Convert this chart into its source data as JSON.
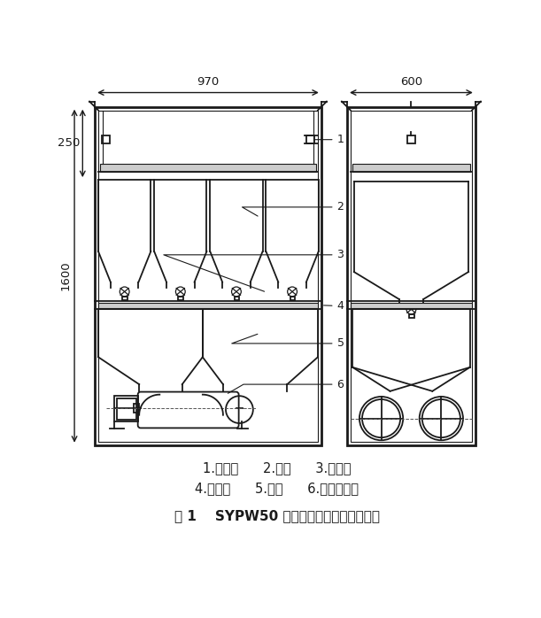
{
  "bg_color": "#ffffff",
  "lc": "#1a1a1a",
  "lw": 1.3,
  "title_line1": "1.传感器      2.秤体      3.电磁阀",
  "title_line2": "4.缓冲斗      5.秤架      6.齿轮泵电机",
  "title_line3": "图 1    SYPW50 微机控制液体配料秤结构图",
  "dim_970": "970",
  "dim_600": "600",
  "dim_250": "250",
  "dim_1600": "1600"
}
